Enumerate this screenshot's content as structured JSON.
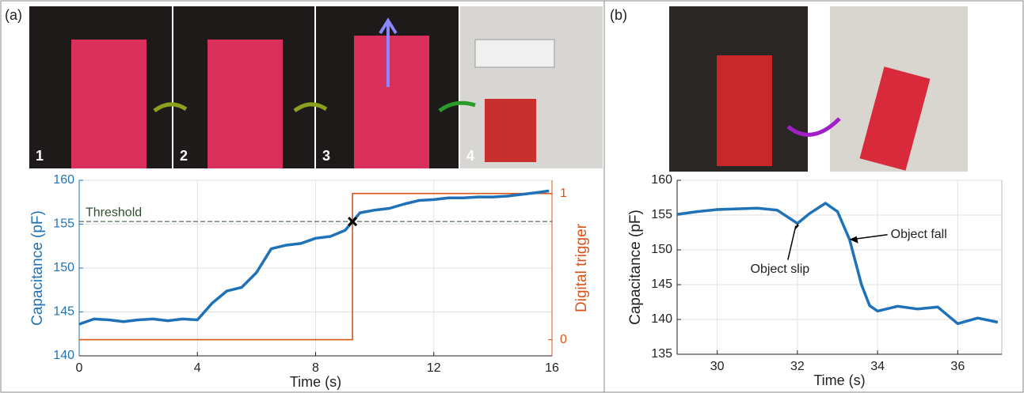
{
  "panels": [
    "(a)",
    "(b)"
  ],
  "photo_labels": [
    "1",
    "2",
    "3",
    "4"
  ],
  "chart_data": [
    {
      "type": "line",
      "xlabel": "Time (s)",
      "ylabel": "Capacitance (pF)",
      "y2label": "Digital trigger",
      "ylabel_color": "#1f72b8",
      "y2label_color": "#d95319",
      "xlim": [
        0,
        16
      ],
      "xticks": [
        0,
        4,
        8,
        12,
        16
      ],
      "ylim": [
        140,
        160
      ],
      "yticks": [
        140,
        145,
        150,
        155,
        160
      ],
      "y2lim": [
        -0.11,
        1.09
      ],
      "y2ticks": [
        0,
        1
      ],
      "grid": true,
      "threshold": {
        "value": 155.3,
        "label": "Threshold"
      },
      "marker": {
        "x": 9.25,
        "y": 155.3
      },
      "series": [
        {
          "color": "#1f72b8",
          "x": [
            0,
            0.5,
            1,
            1.5,
            2,
            2.5,
            3,
            3.5,
            4,
            4.5,
            5,
            5.5,
            6,
            6.5,
            7,
            7.5,
            8,
            8.5,
            9,
            9.25,
            9.5,
            10,
            10.5,
            11,
            11.5,
            12,
            12.5,
            13,
            13.5,
            14,
            14.5,
            15,
            15.5,
            15.9
          ],
          "values": [
            143.6,
            144.2,
            144.1,
            143.9,
            144.1,
            144.2,
            144.0,
            144.2,
            144.1,
            146.0,
            147.4,
            147.8,
            149.5,
            152.2,
            152.6,
            152.8,
            153.4,
            153.6,
            154.3,
            155.3,
            156.3,
            156.6,
            156.8,
            157.3,
            157.7,
            157.8,
            158.0,
            158.0,
            158.1,
            158.1,
            158.2,
            158.4,
            158.6,
            158.8
          ]
        },
        {
          "color": "#d95319",
          "axis": "y2",
          "x": [
            0,
            9.25,
            9.25,
            16
          ],
          "values": [
            0,
            0,
            1,
            1
          ]
        }
      ]
    },
    {
      "type": "line",
      "xlabel": "Time (s)",
      "ylabel": "Capacitance (pF)",
      "xlim": [
        29,
        37.1
      ],
      "xticks": [
        30,
        32,
        34,
        36
      ],
      "ylim": [
        135,
        160
      ],
      "yticks": [
        135,
        140,
        145,
        150,
        155,
        160
      ],
      "grid": true,
      "annotations": [
        {
          "text": "Object slip",
          "x": 32,
          "y": 153.8
        },
        {
          "text": "Object fall",
          "x": 33.3,
          "y": 151.5
        }
      ],
      "series": [
        {
          "color": "#1f72b8",
          "x": [
            29,
            29.5,
            30,
            30.5,
            31,
            31.5,
            32,
            32.3,
            32.7,
            33,
            33.3,
            33.6,
            33.8,
            34,
            34.5,
            35,
            35.5,
            36,
            36.5,
            37
          ],
          "values": [
            155.1,
            155.5,
            155.8,
            155.9,
            156.0,
            155.7,
            153.8,
            155.2,
            156.7,
            155.5,
            151.5,
            145.0,
            142.0,
            141.2,
            141.9,
            141.5,
            141.8,
            139.4,
            140.2,
            139.6
          ]
        }
      ]
    }
  ]
}
